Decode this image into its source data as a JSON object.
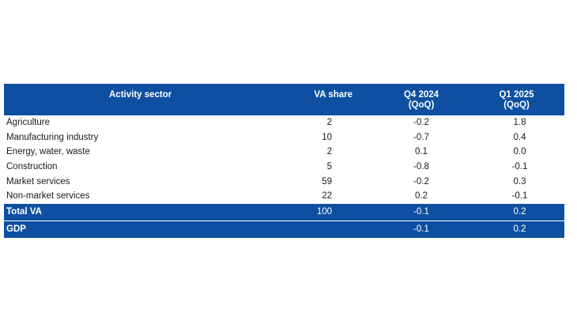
{
  "table": {
    "headers": {
      "sector": "Activity sector",
      "va_share": "VA share",
      "q4_2024": [
        "Q4 2024",
        "(QoQ)"
      ],
      "q1_2025": [
        "Q1 2025",
        "(QoQ)"
      ]
    },
    "rows": [
      {
        "sector": "Agriculture",
        "va_share": "2",
        "q4_2024": "-0.2",
        "q1_2025": "1.8"
      },
      {
        "sector": "Manufacturing industry",
        "va_share": "10",
        "q4_2024": "-0.7",
        "q1_2025": "0.4"
      },
      {
        "sector": "Energy, water, waste",
        "va_share": "2",
        "q4_2024": "0.1",
        "q1_2025": "0.0"
      },
      {
        "sector": "Construction",
        "va_share": "5",
        "q4_2024": "-0.8",
        "q1_2025": "-0.1"
      },
      {
        "sector": "Market services",
        "va_share": "59",
        "q4_2024": "-0.2",
        "q1_2025": "0.3"
      },
      {
        "sector": "Non-market services",
        "va_share": "22",
        "q4_2024": "0.2",
        "q1_2025": "-0.1"
      }
    ],
    "totals": [
      {
        "sector": "Total VA",
        "va_share": "100",
        "q4_2024": "-0.1",
        "q1_2025": "0.2"
      },
      {
        "sector": "GDP",
        "va_share": "",
        "q4_2024": "-0.1",
        "q1_2025": "0.2"
      }
    ]
  },
  "colors": {
    "header_bg": "#0e4fa1",
    "header_text": "#ffffff"
  }
}
